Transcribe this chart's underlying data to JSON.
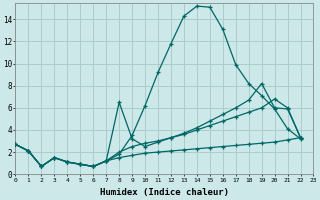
{
  "xlabel": "Humidex (Indice chaleur)",
  "bg_color": "#cce8e8",
  "grid_color": "#aacccc",
  "line_color": "#006666",
  "xlim": [
    0,
    23
  ],
  "ylim": [
    0,
    15.5
  ],
  "xticks": [
    0,
    1,
    2,
    3,
    4,
    5,
    6,
    7,
    8,
    9,
    10,
    11,
    12,
    13,
    14,
    15,
    16,
    17,
    18,
    19,
    20,
    21,
    22,
    23
  ],
  "yticks": [
    0,
    2,
    4,
    6,
    8,
    10,
    12,
    14
  ],
  "curves": [
    {
      "x": [
        0,
        1,
        2,
        3,
        4,
        5,
        6,
        7,
        8,
        9,
        10,
        11,
        12,
        13,
        14,
        15,
        16,
        17,
        18,
        19,
        20,
        21,
        22
      ],
      "y": [
        2.7,
        2.1,
        0.7,
        1.5,
        1.1,
        0.9,
        0.7,
        1.2,
        1.8,
        3.5,
        6.2,
        9.2,
        11.8,
        14.3,
        15.2,
        15.1,
        13.1,
        9.9,
        8.2,
        7.1,
        5.9,
        4.1,
        3.2
      ]
    },
    {
      "x": [
        0,
        1,
        2,
        3,
        4,
        5,
        6,
        7,
        8,
        9,
        10,
        11,
        12,
        13,
        14,
        15,
        16,
        17,
        18,
        19,
        20,
        21,
        22
      ],
      "y": [
        2.7,
        2.1,
        0.7,
        1.5,
        1.1,
        0.9,
        0.7,
        1.2,
        6.5,
        3.2,
        2.5,
        2.9,
        3.3,
        3.7,
        4.2,
        4.8,
        5.4,
        6.0,
        6.7,
        8.2,
        6.0,
        5.9,
        3.3
      ]
    },
    {
      "x": [
        0,
        1,
        2,
        3,
        4,
        5,
        6,
        7,
        8,
        9,
        10,
        11,
        12,
        13,
        14,
        15,
        16,
        17,
        18,
        19,
        20,
        21,
        22
      ],
      "y": [
        2.7,
        2.1,
        0.7,
        1.5,
        1.1,
        0.9,
        0.7,
        1.2,
        2.0,
        2.5,
        2.8,
        3.0,
        3.3,
        3.6,
        4.0,
        4.4,
        4.8,
        5.2,
        5.6,
        6.0,
        6.8,
        6.0,
        3.3
      ]
    },
    {
      "x": [
        0,
        1,
        2,
        3,
        4,
        5,
        6,
        7,
        8,
        9,
        10,
        11,
        12,
        13,
        14,
        15,
        16,
        17,
        18,
        19,
        20,
        21,
        22
      ],
      "y": [
        2.7,
        2.1,
        0.7,
        1.5,
        1.1,
        0.9,
        0.7,
        1.2,
        1.5,
        1.7,
        1.9,
        2.0,
        2.1,
        2.2,
        2.3,
        2.4,
        2.5,
        2.6,
        2.7,
        2.8,
        2.9,
        3.1,
        3.3
      ]
    }
  ]
}
